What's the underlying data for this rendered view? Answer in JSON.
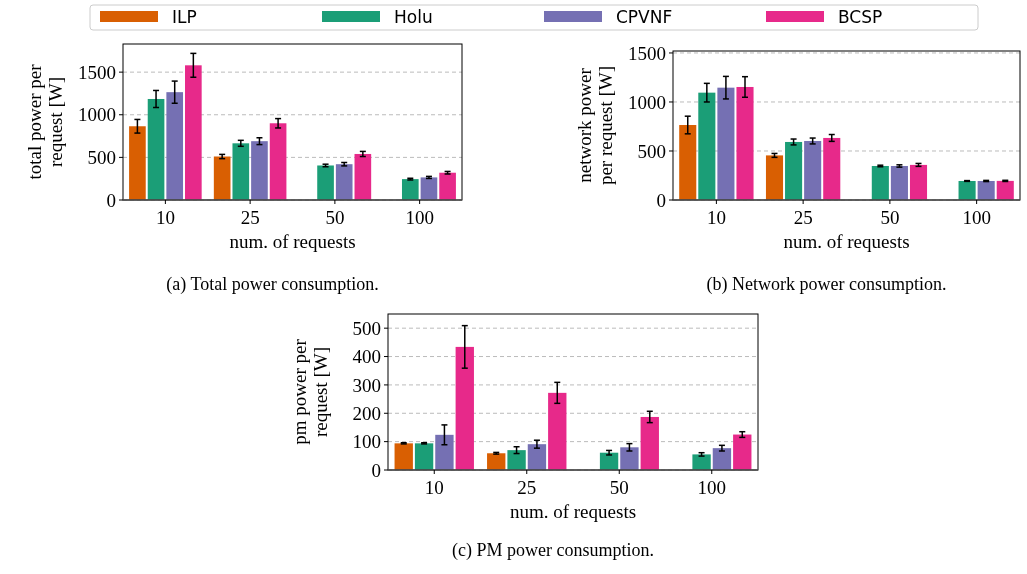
{
  "chart_data": [
    {
      "type": "bar",
      "categories": [
        "10",
        "25",
        "50",
        "100"
      ],
      "xlabel": "num. of requests",
      "ylabel": "total power per\nrequest [W]",
      "ylim": [
        0,
        1830
      ],
      "yticks": [
        0,
        500,
        1000,
        1500
      ],
      "grid": "y",
      "legend": "top",
      "annotations": [
        "(a) Total power consumption."
      ],
      "series": [
        {
          "name": "ILP",
          "color": "#d95f02",
          "values": [
            865,
            510,
            null,
            null
          ],
          "errors": [
            80,
            25,
            null,
            null
          ]
        },
        {
          "name": "Holu",
          "color": "#1b9e77",
          "values": [
            1185,
            665,
            405,
            245
          ],
          "errors": [
            100,
            35,
            15,
            10
          ]
        },
        {
          "name": "CPVNF",
          "color": "#7570b3",
          "values": [
            1265,
            690,
            420,
            265
          ],
          "errors": [
            130,
            40,
            20,
            12
          ]
        },
        {
          "name": "BCSP",
          "color": "#e7298a",
          "values": [
            1580,
            900,
            540,
            320
          ],
          "errors": [
            140,
            55,
            30,
            15
          ]
        }
      ]
    },
    {
      "type": "bar",
      "categories": [
        "10",
        "25",
        "50",
        "100"
      ],
      "xlabel": "num. of requests",
      "ylabel": "network power\nper request [W]",
      "ylim": [
        0,
        1520
      ],
      "yticks": [
        0,
        500,
        1000,
        1500
      ],
      "grid": "y",
      "annotations": [
        "(b) Network power consumption."
      ],
      "series": [
        {
          "color": "#d95f02",
          "values": [
            765,
            455,
            null,
            null
          ],
          "errors": [
            90,
            20,
            null,
            null
          ]
        },
        {
          "color": "#1b9e77",
          "values": [
            1095,
            592,
            347,
            194
          ],
          "errors": [
            95,
            30,
            8,
            4
          ]
        },
        {
          "color": "#7570b3",
          "values": [
            1146,
            602,
            347,
            194
          ],
          "errors": [
            115,
            30,
            12,
            6
          ]
        },
        {
          "color": "#e7298a",
          "values": [
            1153,
            633,
            358,
            195
          ],
          "errors": [
            105,
            35,
            15,
            6
          ]
        }
      ]
    },
    {
      "type": "bar",
      "categories": [
        "10",
        "25",
        "50",
        "100"
      ],
      "xlabel": "num. of requests",
      "ylabel": "pm power per\nrequest [W]",
      "ylim": [
        0,
        550
      ],
      "yticks": [
        0,
        100,
        200,
        300,
        400,
        500
      ],
      "grid": "y",
      "annotations": [
        "(c) PM power consumption."
      ],
      "series": [
        {
          "color": "#d95f02",
          "values": [
            94,
            59,
            null,
            null
          ],
          "errors": [
            2,
            3,
            null,
            null
          ]
        },
        {
          "color": "#1b9e77",
          "values": [
            94,
            70,
            61,
            55
          ],
          "errors": [
            2,
            12,
            8,
            6
          ]
        },
        {
          "color": "#7570b3",
          "values": [
            124,
            91,
            80,
            77
          ],
          "errors": [
            35,
            14,
            13,
            10
          ]
        },
        {
          "color": "#e7298a",
          "values": [
            434,
            272,
            187,
            125
          ],
          "errors": [
            75,
            37,
            20,
            10
          ]
        }
      ]
    }
  ]
}
